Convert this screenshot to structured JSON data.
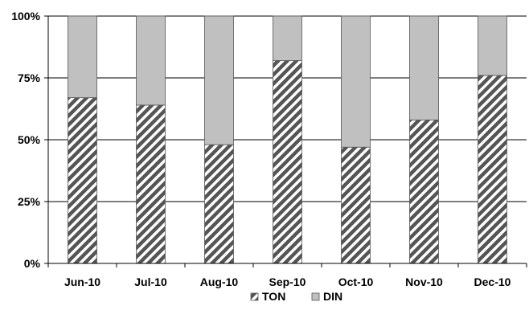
{
  "chart_data": {
    "type": "bar",
    "stacked": true,
    "percent_stacked": true,
    "categories": [
      "Jun-10",
      "Jul-10",
      "Aug-10",
      "Sep-10",
      "Oct-10",
      "Nov-10",
      "Dec-10"
    ],
    "series": [
      {
        "name": "TON",
        "values": [
          67,
          64,
          48,
          82,
          47,
          58,
          76
        ],
        "color": "#777777",
        "pattern": "diagonal-hatch"
      },
      {
        "name": "DIN",
        "values": [
          33,
          36,
          52,
          18,
          53,
          42,
          24
        ],
        "color": "#c0c0c0",
        "pattern": "solid"
      }
    ],
    "ylim": [
      0,
      100
    ],
    "yticks": [
      0,
      25,
      50,
      75,
      100
    ],
    "ytick_labels": [
      "0%",
      "25%",
      "50%",
      "75%",
      "100%"
    ],
    "grid": true,
    "legend_position": "bottom"
  }
}
